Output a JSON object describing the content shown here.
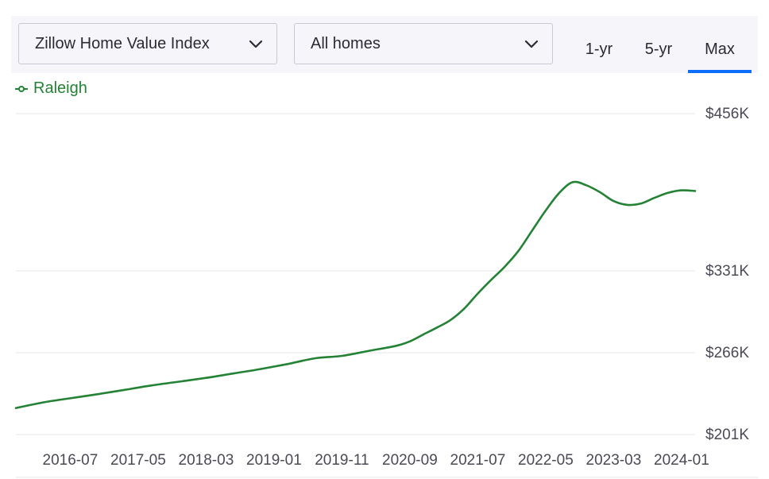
{
  "toolbar": {
    "metric_select": "Zillow Home Value Index",
    "home_type_select": "All homes",
    "tabs": [
      {
        "label": "1-yr",
        "active": false
      },
      {
        "label": "5-yr",
        "active": false
      },
      {
        "label": "Max",
        "active": true
      }
    ]
  },
  "chart_data": {
    "type": "line",
    "title": "",
    "xlabel": "",
    "ylabel": "",
    "legend_position": "top-left",
    "grid": true,
    "ylim": [
      201000,
      456000
    ],
    "y_ticks": [
      "$201K",
      "$266K",
      "$331K",
      "$456K"
    ],
    "y_tick_values": [
      201000,
      266000,
      331000,
      456000
    ],
    "x_ticks": [
      "2016-07",
      "2017-05",
      "2018-03",
      "2019-01",
      "2019-11",
      "2020-09",
      "2021-07",
      "2022-05",
      "2023-03",
      "2024-01"
    ],
    "series": [
      {
        "name": "Raleigh",
        "color": "#248235",
        "points": [
          [
            "2015-11",
            222000
          ],
          [
            "2016-03",
            226500
          ],
          [
            "2016-07",
            229800
          ],
          [
            "2016-11",
            233000
          ],
          [
            "2017-03",
            236500
          ],
          [
            "2017-07",
            240000
          ],
          [
            "2017-11",
            243000
          ],
          [
            "2018-03",
            246000
          ],
          [
            "2018-07",
            249500
          ],
          [
            "2018-11",
            253000
          ],
          [
            "2019-03",
            257000
          ],
          [
            "2019-07",
            261500
          ],
          [
            "2019-11",
            263500
          ],
          [
            "2020-03",
            267500
          ],
          [
            "2020-07",
            271500
          ],
          [
            "2020-09",
            275000
          ],
          [
            "2020-11",
            280500
          ],
          [
            "2021-01",
            286000
          ],
          [
            "2021-03",
            292000
          ],
          [
            "2021-05",
            301000
          ],
          [
            "2021-07",
            313000
          ],
          [
            "2021-09",
            324000
          ],
          [
            "2021-11",
            334500
          ],
          [
            "2022-01",
            347000
          ],
          [
            "2022-03",
            363000
          ],
          [
            "2022-05",
            379000
          ],
          [
            "2022-07",
            393000
          ],
          [
            "2022-09",
            401500
          ],
          [
            "2022-11",
            399000
          ],
          [
            "2023-01",
            393500
          ],
          [
            "2023-03",
            386500
          ],
          [
            "2023-05",
            383500
          ],
          [
            "2023-07",
            384500
          ],
          [
            "2023-09",
            389000
          ],
          [
            "2023-11",
            393000
          ],
          [
            "2024-01",
            395000
          ],
          [
            "2024-03",
            394500
          ]
        ]
      }
    ]
  }
}
